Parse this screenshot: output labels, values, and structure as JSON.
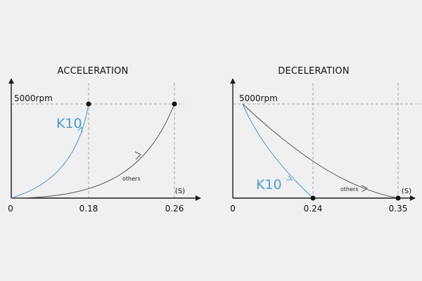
{
  "colors": {
    "background": "#f0f0f0",
    "k10": "#4a9bd0",
    "others": "#555555",
    "axis": "#1a1a1a",
    "guide": "#a6a6a6"
  },
  "chart_data": [
    {
      "type": "line",
      "title": "ACCELERATION",
      "xlabel": "(S)",
      "ylabel": "",
      "y_reference_label": "5000rpm",
      "xlim": [
        0,
        0.3
      ],
      "ylim": [
        0,
        6200
      ],
      "x_ticks": [
        "0",
        "0.18",
        "0.26"
      ],
      "series": [
        {
          "name": "K10",
          "x": [
            0,
            0.06,
            0.12,
            0.18
          ],
          "y": [
            0,
            900,
            2500,
            5000
          ]
        },
        {
          "name": "others",
          "x": [
            0,
            0.1,
            0.18,
            0.26
          ],
          "y": [
            0,
            500,
            1700,
            5000
          ]
        }
      ]
    },
    {
      "type": "line",
      "title": "DECELERATION",
      "xlabel": "(S)",
      "ylabel": "",
      "y_reference_label": "5000rpm",
      "xlim": [
        0,
        0.4
      ],
      "ylim": [
        0,
        6200
      ],
      "x_ticks": [
        "0",
        "0.24",
        "0.35"
      ],
      "series": [
        {
          "name": "K10",
          "x": [
            0,
            0.08,
            0.16,
            0.24
          ],
          "y": [
            5000,
            2600,
            1000,
            0
          ]
        },
        {
          "name": "others",
          "x": [
            0,
            0.12,
            0.24,
            0.35
          ],
          "y": [
            5000,
            2300,
            700,
            0
          ]
        }
      ]
    }
  ]
}
